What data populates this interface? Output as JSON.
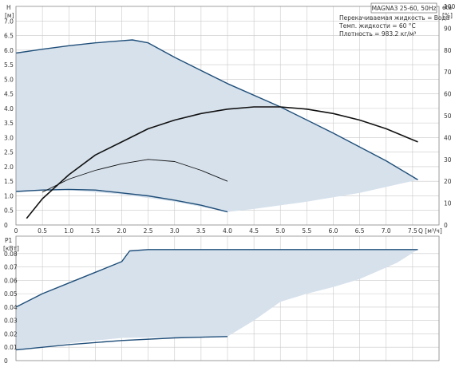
{
  "header": {
    "pump_title": "MAGNA3 25-60, 50Hz",
    "lines": [
      "Перекачиваемая жидкость = Вода",
      "Темп. жидкости = 60 °C",
      "Плотность = 983.2 кг/м³"
    ]
  },
  "chart_data": [
    {
      "type": "line",
      "title": "MAGNA3 25-60, 50Hz",
      "xlabel": "Q [м³/ч]",
      "ylabel": "H [м]",
      "y2label": "eta [%]",
      "xlim": [
        0,
        8
      ],
      "ylim": [
        0,
        7.5
      ],
      "y2lim": [
        0,
        100
      ],
      "x_ticks": [
        "0",
        "0.5",
        "1.0",
        "1.5",
        "2.0",
        "2.5",
        "3.0",
        "3.5",
        "4.0",
        "4.5",
        "5.0",
        "5.5",
        "6.0",
        "6.5",
        "7.0",
        "7.5"
      ],
      "y_ticks": [
        "0",
        "0.5",
        "1.0",
        "1.5",
        "2.0",
        "2.5",
        "3.0",
        "3.5",
        "4.0",
        "4.5",
        "5.0",
        "5.5",
        "6.0",
        "6.5",
        "7.0"
      ],
      "y2_ticks": [
        "0",
        "10",
        "20",
        "30",
        "40",
        "50",
        "60",
        "70",
        "80",
        "90",
        "100"
      ],
      "grid": true,
      "colors": {
        "fill": "#d6e1ec",
        "head": "#1f4e79",
        "eta": "#111111"
      },
      "operating_area": {
        "upper": [
          [
            0,
            5.9
          ],
          [
            0.5,
            6.03
          ],
          [
            1.0,
            6.15
          ],
          [
            1.5,
            6.25
          ],
          [
            2.0,
            6.32
          ],
          [
            2.2,
            6.35
          ],
          [
            2.5,
            6.25
          ],
          [
            3.0,
            5.75
          ],
          [
            3.5,
            5.3
          ],
          [
            4.0,
            4.85
          ],
          [
            5.0,
            4.05
          ],
          [
            6.0,
            3.15
          ],
          [
            7.0,
            2.2
          ],
          [
            7.6,
            1.55
          ]
        ],
        "lower": [
          [
            7.6,
            1.55
          ],
          [
            6.5,
            1.1
          ],
          [
            5.5,
            0.8
          ],
          [
            4.5,
            0.55
          ],
          [
            4.0,
            0.45
          ],
          [
            3.0,
            0.8
          ],
          [
            2.0,
            1.05
          ],
          [
            1.0,
            1.2
          ],
          [
            0,
            1.15
          ]
        ]
      },
      "series": [
        {
          "values": [
            [
              0,
              5.9
            ],
            [
              0.5,
              6.03
            ],
            [
              1.0,
              6.15
            ],
            [
              1.5,
              6.25
            ],
            [
              2.0,
              6.32
            ],
            [
              2.2,
              6.35
            ],
            [
              2.5,
              6.25
            ],
            [
              3.0,
              5.75
            ],
            [
              3.5,
              5.3
            ],
            [
              4.0,
              4.85
            ],
            [
              5.0,
              4.05
            ],
            [
              6.0,
              3.15
            ],
            [
              7.0,
              2.2
            ],
            [
              7.6,
              1.55
            ]
          ]
        },
        {
          "values": [
            [
              0,
              1.15
            ],
            [
              0.5,
              1.2
            ],
            [
              1.0,
              1.22
            ],
            [
              1.5,
              1.2
            ],
            [
              2.0,
              1.1
            ],
            [
              2.5,
              1.0
            ],
            [
              3.0,
              0.85
            ],
            [
              3.5,
              0.68
            ],
            [
              4.0,
              0.45
            ]
          ]
        },
        {
          "axis": "y2",
          "values": [
            [
              0.2,
              3
            ],
            [
              0.5,
              12
            ],
            [
              1.0,
              23
            ],
            [
              1.5,
              32
            ],
            [
              2.0,
              38
            ],
            [
              2.5,
              44
            ],
            [
              3.0,
              48
            ],
            [
              3.5,
              51
            ],
            [
              4.0,
              53
            ],
            [
              4.5,
              54
            ],
            [
              5.0,
              54
            ],
            [
              5.5,
              53
            ],
            [
              6.0,
              51
            ],
            [
              6.5,
              48
            ],
            [
              7.0,
              44
            ],
            [
              7.6,
              38
            ]
          ]
        },
        {
          "axis": "y2",
          "values": [
            [
              0.5,
              15
            ],
            [
              1.0,
              21
            ],
            [
              1.5,
              25
            ],
            [
              2.0,
              28
            ],
            [
              2.5,
              30
            ],
            [
              3.0,
              29
            ],
            [
              3.5,
              25
            ],
            [
              4.0,
              20
            ]
          ]
        }
      ]
    },
    {
      "type": "line",
      "xlabel": "",
      "ylabel": "P1 [кВт]",
      "xlim": [
        0,
        8
      ],
      "ylim": [
        0,
        0.093
      ],
      "y_ticks": [
        "0",
        "0.01",
        "0.02",
        "0.03",
        "0.04",
        "0.05",
        "0.06",
        "0.07",
        "0.08"
      ],
      "grid": true,
      "operating_area": {
        "upper": [
          [
            0,
            0.04
          ],
          [
            0.5,
            0.05
          ],
          [
            1.0,
            0.058
          ],
          [
            1.5,
            0.066
          ],
          [
            2.0,
            0.074
          ],
          [
            2.15,
            0.082
          ],
          [
            2.5,
            0.083
          ],
          [
            4.0,
            0.083
          ],
          [
            6.0,
            0.083
          ],
          [
            7.0,
            0.083
          ],
          [
            7.6,
            0.083
          ]
        ],
        "lower": [
          [
            7.6,
            0.083
          ],
          [
            7.2,
            0.073
          ],
          [
            6.5,
            0.061
          ],
          [
            6.0,
            0.055
          ],
          [
            5.5,
            0.05
          ],
          [
            5.0,
            0.044
          ],
          [
            4.5,
            0.03
          ],
          [
            4.0,
            0.018
          ],
          [
            2.0,
            0.017
          ],
          [
            1.0,
            0.013
          ],
          [
            0,
            0.008
          ]
        ]
      },
      "series": [
        {
          "values": [
            [
              0,
              0.04
            ],
            [
              0.5,
              0.05
            ],
            [
              1.0,
              0.058
            ],
            [
              1.5,
              0.066
            ],
            [
              2.0,
              0.074
            ],
            [
              2.15,
              0.082
            ],
            [
              2.5,
              0.083
            ],
            [
              4.0,
              0.083
            ],
            [
              6.0,
              0.083
            ],
            [
              7.0,
              0.083
            ],
            [
              7.6,
              0.083
            ]
          ]
        },
        {
          "values": [
            [
              0,
              0.008
            ],
            [
              1.0,
              0.012
            ],
            [
              2.0,
              0.015
            ],
            [
              3.0,
              0.017
            ],
            [
              4.0,
              0.018
            ]
          ]
        }
      ]
    }
  ]
}
